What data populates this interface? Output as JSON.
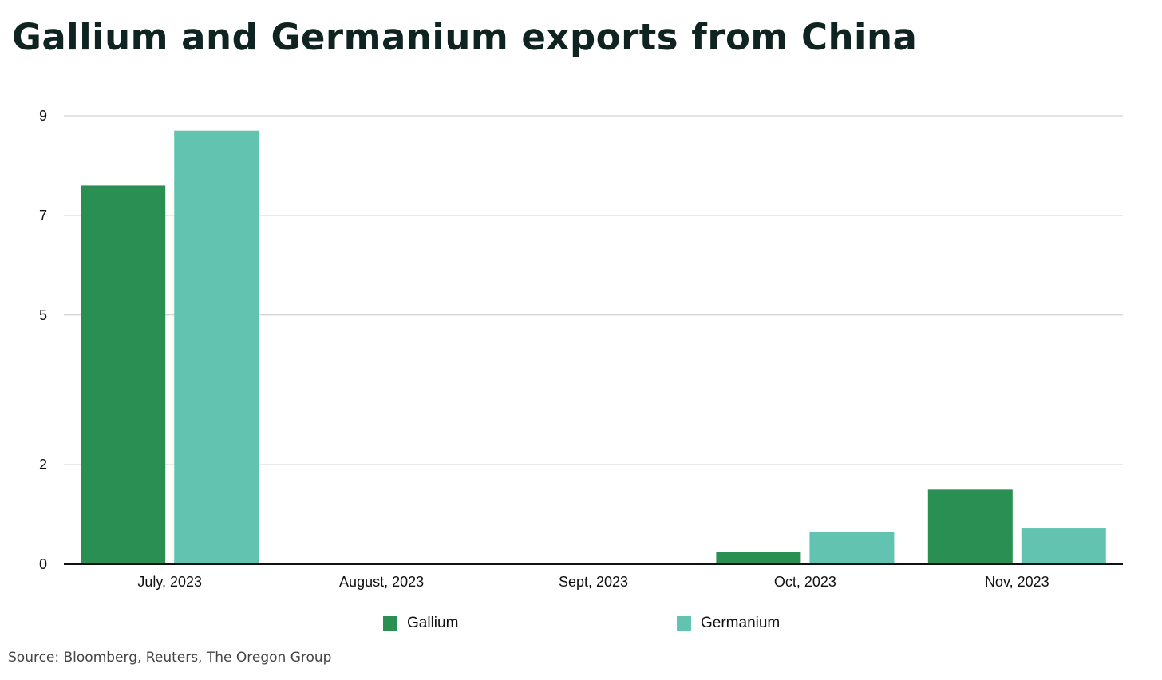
{
  "chart_data": {
    "type": "bar",
    "title": "Gallium and Germanium exports from China",
    "categories": [
      "July, 2023",
      "August, 2023",
      "Sept, 2023",
      "Oct, 2023",
      "Nov, 2023"
    ],
    "series": [
      {
        "name": "Gallium",
        "color": "#2a8f52",
        "values": [
          7.6,
          0,
          0,
          0.25,
          1.5
        ]
      },
      {
        "name": "Germanium",
        "color": "#62c4b0",
        "values": [
          8.7,
          0,
          0,
          0.65,
          0.72
        ]
      }
    ],
    "y_ticks": [
      "0",
      "2",
      "5",
      "7",
      "9"
    ],
    "ylim": [
      0,
      9
    ],
    "xlabel": "",
    "ylabel": "",
    "grid": true,
    "legend_placement": "bottom-center"
  },
  "source": "Source: Bloomberg, Reuters, The Oregon Group"
}
